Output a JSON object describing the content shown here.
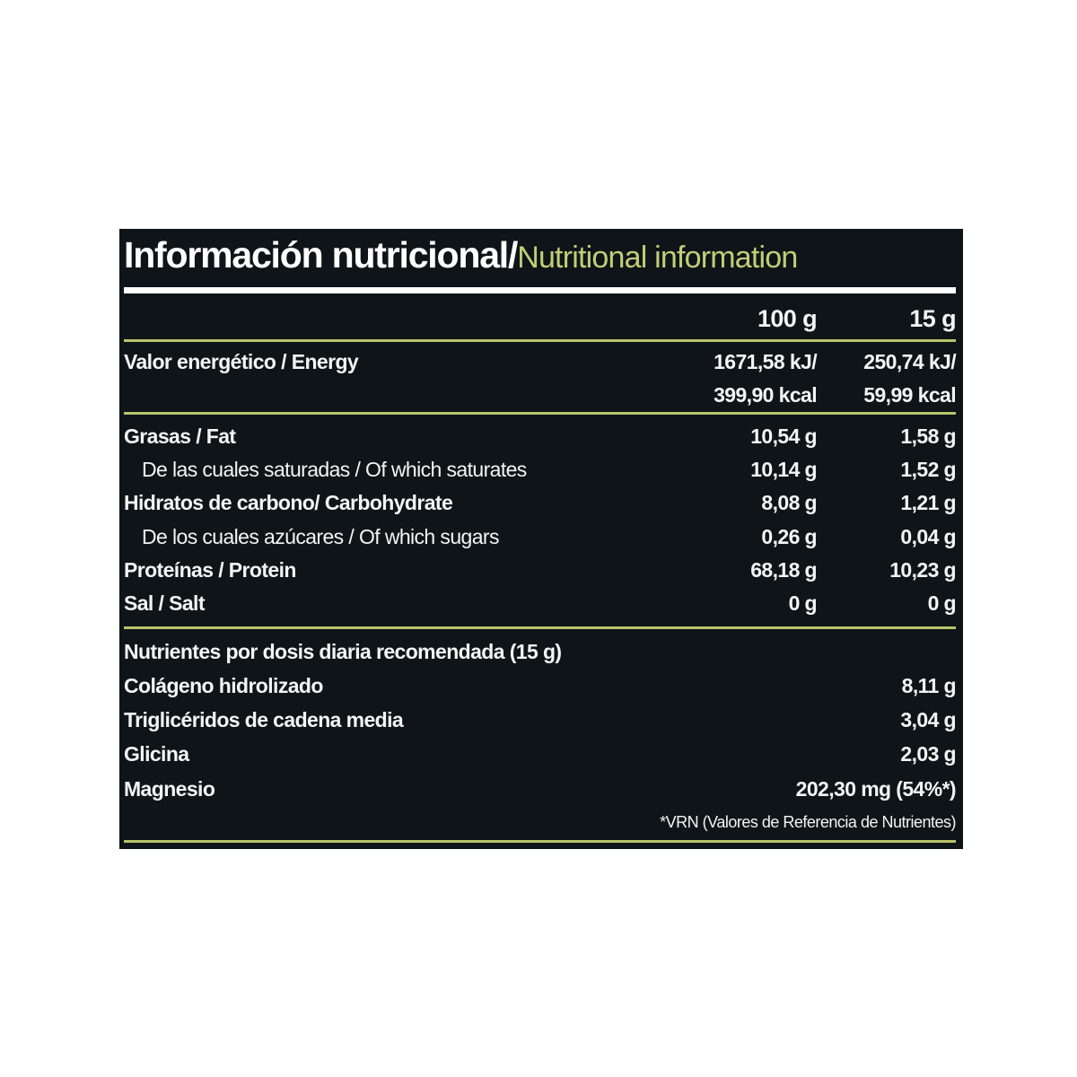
{
  "title": {
    "es": "Información nutricional/",
    "en": "Nutritional information"
  },
  "columns": {
    "c1": "100 g",
    "c2": "15 g"
  },
  "energy": {
    "label": "Valor energético / Energy",
    "c1_kj": "1671,58 kJ/",
    "c1_kcal": "399,90 kcal",
    "c2_kj": "250,74 kJ/",
    "c2_kcal": "59,99 kcal"
  },
  "rows": [
    {
      "label": "Grasas / Fat",
      "c1": "10,54 g",
      "c2": "1,58 g",
      "sub": false
    },
    {
      "label": "De las cuales saturadas / Of which saturates",
      "c1": "10,14 g",
      "c2": "1,52 g",
      "sub": true
    },
    {
      "label": "Hidratos de carbono/ Carbohydrate",
      "c1": "8,08 g",
      "c2": "1,21 g",
      "sub": false
    },
    {
      "label": "De los cuales azúcares / Of which sugars",
      "c1": "0,26 g",
      "c2": "0,04 g",
      "sub": true
    },
    {
      "label": "Proteínas / Protein",
      "c1": "68,18 g",
      "c2": "10,23 g",
      "sub": false
    },
    {
      "label": "Sal / Salt",
      "c1": "0 g",
      "c2": "0 g",
      "sub": false
    }
  ],
  "daily": {
    "heading": "Nutrientes por dosis diaria recomendada (15 g)",
    "items": [
      {
        "label": "Colágeno hidrolizado",
        "value": "8,11 g"
      },
      {
        "label": "Triglicéridos de cadena media",
        "value": "3,04 g"
      },
      {
        "label": "Glicina",
        "value": "2,03 g"
      },
      {
        "label": "Magnesio",
        "value": "202,30 mg (54%*)"
      }
    ],
    "footnote": "*VRN (Valores de Referencia de Nutrientes)"
  },
  "colors": {
    "background": "#0f1418",
    "accent": "#b9c46c",
    "title_en": "#c3cd78",
    "text": "#f4f4f4"
  }
}
